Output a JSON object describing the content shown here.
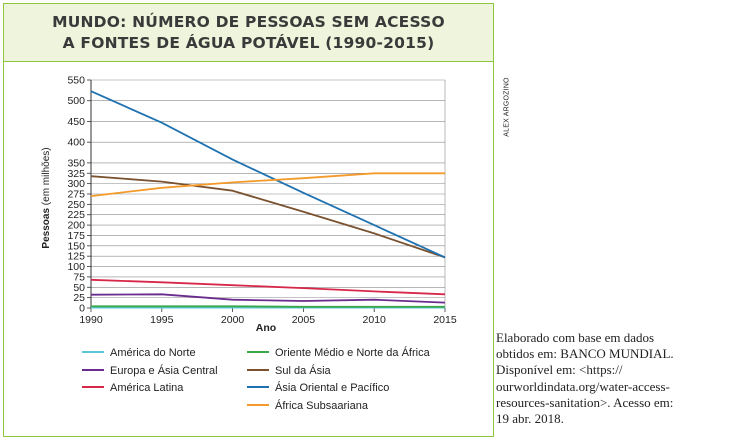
{
  "title_lines": [
    "MUNDO: NÚMERO DE PESSOAS SEM ACESSO",
    "A FONTES DE ÁGUA POTÁVEL (1990-2015)"
  ],
  "credit": "ALEX ARGOZINO",
  "source_lines": [
    "Elaborado com base em dados",
    "obtidos em: BANCO MUNDIAL.",
    "Disponível em: <https://",
    "ourworldindata.org/water-access-",
    "resources-sanitation>. Acesso em:",
    "19 abr. 2018."
  ],
  "chart_data": {
    "type": "line",
    "xlabel": "Ano",
    "ylabel": "Pessoas (em milhões)",
    "x": [
      1990,
      1995,
      2000,
      2005,
      2010,
      2015
    ],
    "x_ticks": [
      "1990",
      "1995",
      "2000",
      "2005",
      "2010",
      "2015"
    ],
    "y_ticks": [
      "0",
      "25",
      "50",
      "75",
      "100",
      "125",
      "150",
      "175",
      "200",
      "225",
      "250",
      "275",
      "300",
      "325",
      "350",
      "400",
      "450",
      "500",
      "550"
    ],
    "ylim": [
      0,
      550
    ],
    "grid": true,
    "legend_position": "bottom",
    "series": [
      {
        "name": "América do Norte",
        "color": "#5ac8d8",
        "values": [
          1,
          1,
          1,
          1,
          1,
          1
        ]
      },
      {
        "name": "Oriente Médio e Norte da África",
        "color": "#3aa84a",
        "values": [
          4,
          4,
          4,
          3,
          3,
          3
        ]
      },
      {
        "name": "Europa e Ásia Central",
        "color": "#6a2c8e",
        "values": [
          32,
          33,
          20,
          17,
          20,
          13
        ]
      },
      {
        "name": "Sul da Ásia",
        "color": "#7a5230",
        "values": [
          318,
          305,
          283,
          232,
          180,
          122
        ]
      },
      {
        "name": "América Latina",
        "color": "#d8284a",
        "values": [
          68,
          62,
          55,
          48,
          40,
          33
        ]
      },
      {
        "name": "Ásia Oriental e Pacífico",
        "color": "#1f72b0",
        "values": [
          523,
          447,
          358,
          278,
          200,
          122
        ]
      },
      {
        "name": "África Subsaariana",
        "color": "#f39a2a",
        "values": [
          270,
          290,
          303,
          313,
          325,
          325
        ]
      }
    ]
  }
}
